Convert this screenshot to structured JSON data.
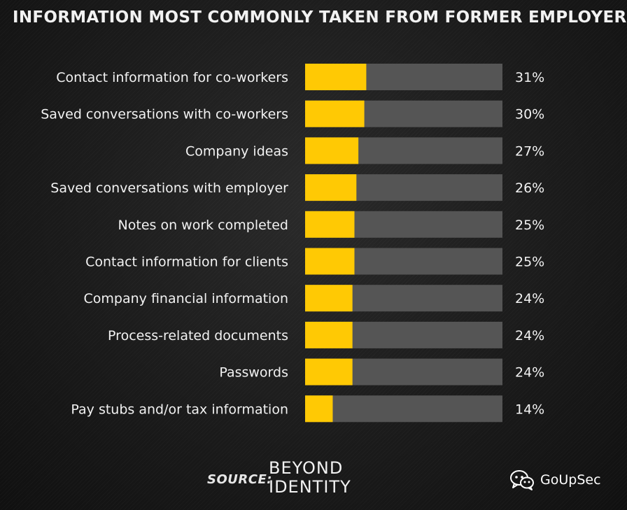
{
  "chart_data": {
    "type": "bar",
    "orientation": "horizontal",
    "title": "INFORMATION MOST COMMONLY TAKEN FROM FORMER EMPLOYER",
    "categories": [
      "Contact information for co-workers",
      "Saved conversations with co-workers",
      "Company ideas",
      "Saved conversations with employer",
      "Notes on work completed",
      "Contact information for clients",
      "Company financial information",
      "Process-related documents",
      "Passwords",
      "Pay stubs and/or tax information"
    ],
    "values": [
      31,
      30,
      27,
      26,
      25,
      25,
      24,
      24,
      24,
      14
    ],
    "value_labels": [
      "31%",
      "30%",
      "27%",
      "26%",
      "25%",
      "25%",
      "24%",
      "24%",
      "24%",
      "14%"
    ],
    "unit": "%",
    "xlim": [
      0,
      100
    ],
    "grid": false,
    "legend": "none",
    "colors": {
      "bar_fill": "#FFC904",
      "bar_track": "#555555",
      "label_text": "#F2F2F2"
    }
  },
  "footer": {
    "source_label": "SOURCE:",
    "logo_line1": "BEYOND",
    "logo_line2": "IDENTITY"
  },
  "watermark": {
    "icon": "wechat-icon",
    "text": "GoUpSec"
  }
}
